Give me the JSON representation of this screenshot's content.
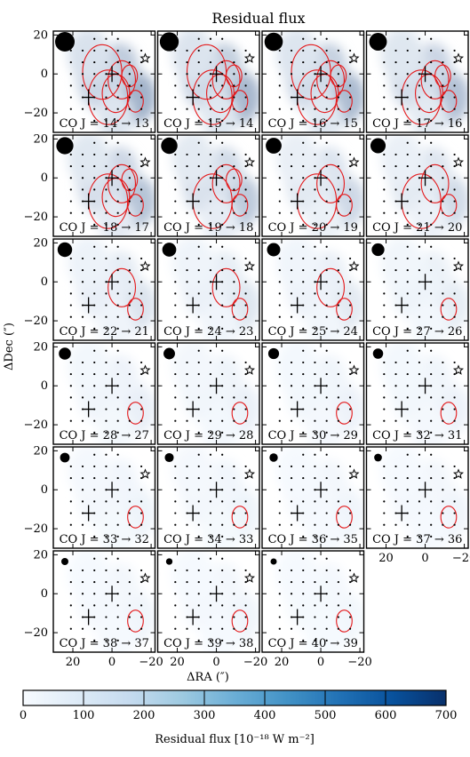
{
  "chart_data": {
    "type": "heatmap",
    "title": "Residual flux",
    "xlabel": "ΔRA (″)",
    "ylabel": "ΔDec (″)",
    "xticks": [
      20,
      0,
      -20
    ],
    "yticks": [
      20,
      0,
      -20
    ],
    "xlim": [
      30,
      -22
    ],
    "ylim": [
      -30,
      22
    ],
    "colorbar": {
      "label": "Residual flux [10⁻¹⁸ W m⁻²]",
      "ticks": [
        0,
        100,
        200,
        300,
        400,
        500,
        600,
        700
      ],
      "range": [
        0,
        700
      ],
      "cmap": "Blues"
    },
    "panels": [
      {
        "label": "CO J = 14 → 13",
        "peak": 250
      },
      {
        "label": "CO J = 15 → 14",
        "peak": 230
      },
      {
        "label": "CO J = 16 → 15",
        "peak": 220
      },
      {
        "label": "CO J = 17 → 16",
        "peak": 200
      },
      {
        "label": "CO J = 18 → 17",
        "peak": 190
      },
      {
        "label": "CO J = 19 → 18",
        "peak": 170
      },
      {
        "label": "CO J = 20 → 19",
        "peak": 120
      },
      {
        "label": "CO J = 21 → 20",
        "peak": 110
      },
      {
        "label": "CO J = 22 → 21",
        "peak": 80
      },
      {
        "label": "CO J = 24 → 23",
        "peak": 70
      },
      {
        "label": "CO J = 25 → 24",
        "peak": 60
      },
      {
        "label": "CO J = 27 → 26",
        "peak": 50
      },
      {
        "label": "CO J = 28 → 27",
        "peak": 40
      },
      {
        "label": "CO J = 29 → 28",
        "peak": 35
      },
      {
        "label": "CO J = 30 → 29",
        "peak": 30
      },
      {
        "label": "CO J = 32 → 31",
        "peak": 30
      },
      {
        "label": "CO J = 33 → 32",
        "peak": 25
      },
      {
        "label": "CO J = 34 → 33",
        "peak": 25
      },
      {
        "label": "CO J = 36 → 35",
        "peak": 20
      },
      {
        "label": "CO J = 37 → 36",
        "peak": 20
      },
      {
        "label": "CO J = 38 → 37",
        "peak": 20
      },
      {
        "label": "CO J = 39 → 38",
        "peak": 20
      },
      {
        "label": "CO J = 40 → 39",
        "peak": 15
      }
    ],
    "markers": {
      "crosses": [
        [
          0,
          0
        ],
        [
          12,
          -12
        ]
      ],
      "star": [
        -17,
        8
      ]
    },
    "colors": {
      "contour": "#e41a1c",
      "low": "#f7fbff",
      "high": "#08306b"
    }
  }
}
